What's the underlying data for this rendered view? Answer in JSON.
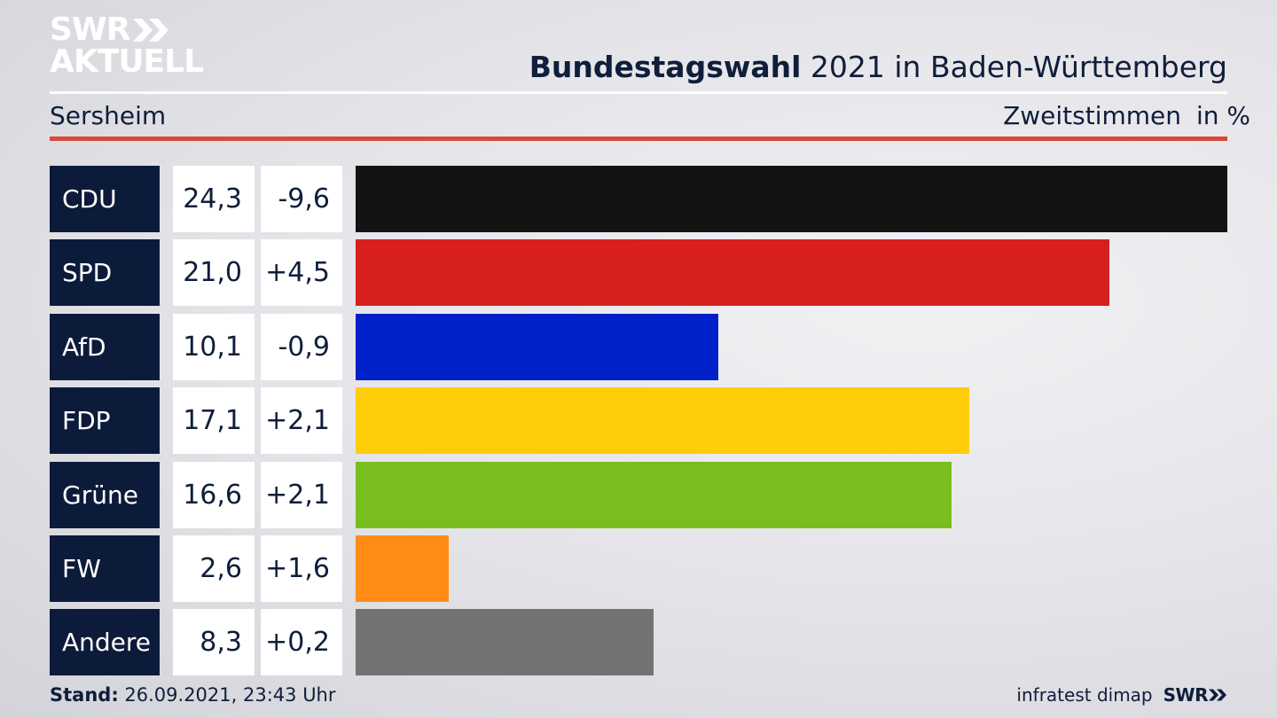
{
  "logo": {
    "line1": "SWR",
    "line2": "AKTUELL"
  },
  "header": {
    "title_bold": "Bundestagswahl",
    "title_rest": "2021 in Baden-Württemberg",
    "region": "Sersheim",
    "measure": "Zweitstimmen",
    "unit": "in %"
  },
  "chart_data": {
    "type": "bar",
    "orientation": "horizontal",
    "categories": [
      "CDU",
      "SPD",
      "AfD",
      "FDP",
      "Grüne",
      "FW",
      "Andere"
    ],
    "values": [
      24.3,
      21.0,
      10.1,
      17.1,
      16.6,
      2.6,
      8.3
    ],
    "value_labels": [
      "24,3",
      "21,0",
      "10,1",
      "17,1",
      "16,6",
      "2,6",
      "8,3"
    ],
    "change_labels": [
      "-9,6",
      "+4,5",
      "-0,9",
      "+2,1",
      "+2,1",
      "+1,6",
      "+0,2"
    ],
    "changes": [
      -9.6,
      4.5,
      -0.9,
      2.1,
      2.1,
      1.6,
      0.2
    ],
    "colors": [
      "#131313",
      "#d81f20",
      "#0021c9",
      "#ffcc0a",
      "#78bf1e",
      "#ff8c15",
      "#737373"
    ],
    "xlim": [
      0,
      24.3
    ],
    "grid": false,
    "legend": "none"
  },
  "footer": {
    "stand_label": "Stand:",
    "stand_value": "26.09.2021, 23:43 Uhr",
    "source": "infratest dimap",
    "source_logo": "SWR"
  }
}
